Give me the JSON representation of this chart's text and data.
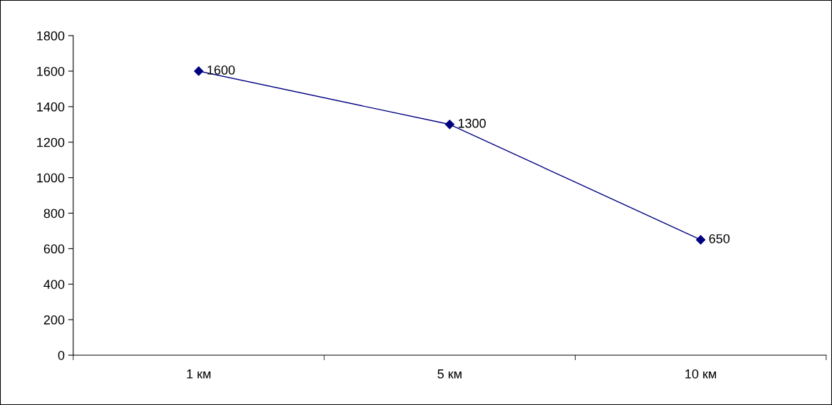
{
  "chart_data": {
    "type": "line",
    "categories": [
      "1 км",
      "5 км",
      "10 км"
    ],
    "series": [
      {
        "color": "#000080",
        "values": [
          1600,
          1300,
          650
        ]
      }
    ],
    "ylim": [
      0,
      1800
    ],
    "yticks": [
      0,
      200,
      400,
      600,
      800,
      1000,
      1200,
      1400,
      1600,
      1800
    ],
    "marker": "diamond",
    "line_style": "solid",
    "data_labels": true,
    "grid": false,
    "legend": false
  }
}
